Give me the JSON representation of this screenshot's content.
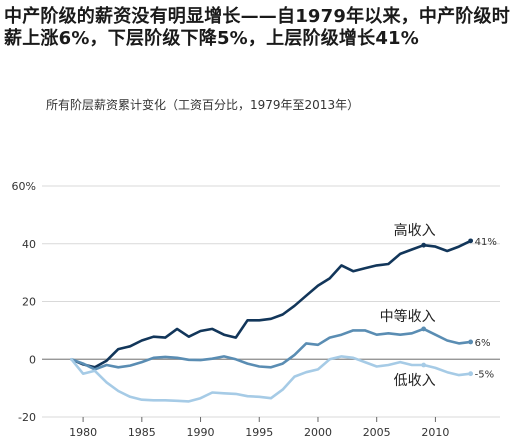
{
  "headline": "中产阶级的薪资没有明显增长——自1979年以来，中产阶级时薪上涨6%，下层阶级下降5%，上层阶级增长41%",
  "subtitle": "所有阶层薪资累计变化（工资百分比，1979年至2013年）",
  "chart_data": {
    "type": "line",
    "title": "中产阶级的薪资没有明显增长——自1979年以来，中产阶级时薪上涨6%，下层阶级下降5%，上层阶级增长41%",
    "subtitle": "所有阶层薪资累计变化（工资百分比，1979年至2013年）",
    "x": [
      1979,
      1980,
      1981,
      1982,
      1983,
      1984,
      1985,
      1986,
      1987,
      1988,
      1989,
      1990,
      1991,
      1992,
      1993,
      1994,
      1995,
      1996,
      1997,
      1998,
      1999,
      2000,
      2001,
      2002,
      2003,
      2004,
      2005,
      2006,
      2007,
      2008,
      2009,
      2010,
      2011,
      2012,
      2013
    ],
    "xticks": [
      1980,
      1985,
      1990,
      1995,
      2000,
      2005,
      2010
    ],
    "yticks": [
      -20,
      0,
      20,
      40,
      60
    ],
    "ytick_labels": [
      "-20",
      "0",
      "20",
      "40",
      "60%"
    ],
    "xlim": [
      1976.5,
      2015.5
    ],
    "ylim": [
      -20,
      60
    ],
    "grid": "horizontal",
    "series": [
      {
        "name": "高收入",
        "color": "#12365a",
        "end_label": "41%",
        "values": [
          0,
          -1.8,
          -2.8,
          -0.5,
          3.5,
          4.5,
          6.5,
          7.8,
          7.5,
          10.5,
          7.8,
          9.8,
          10.5,
          8.5,
          7.5,
          13.5,
          13.5,
          14,
          15.5,
          18.5,
          22,
          25.5,
          28,
          32.5,
          30.5,
          31.5,
          32.5,
          33,
          36.5,
          38,
          39.5,
          39,
          37.5,
          39,
          41
        ]
      },
      {
        "name": "中等收入",
        "color": "#5a8db3",
        "end_label": "6%",
        "values": [
          0,
          -1.5,
          -3.5,
          -2,
          -2.8,
          -2.2,
          -1,
          0.5,
          0.8,
          0.5,
          -0.2,
          -0.3,
          0.2,
          1,
          0,
          -1.5,
          -2.5,
          -2.8,
          -1.5,
          1.5,
          5.5,
          5,
          7.5,
          8.5,
          10,
          10,
          8.5,
          9,
          8.5,
          9,
          10.5,
          8.5,
          6.5,
          5.5,
          6
        ]
      },
      {
        "name": "低收入",
        "color": "#a6cbe6",
        "end_label": "-5%",
        "values": [
          0,
          -5,
          -4,
          -8,
          -11,
          -13,
          -14,
          -14.2,
          -14.2,
          -14.4,
          -14.6,
          -13.5,
          -11.5,
          -11.8,
          -12,
          -12.8,
          -13,
          -13.5,
          -10.5,
          -6,
          -4.5,
          -3.5,
          0,
          1,
          0.5,
          -1,
          -2.5,
          -2,
          -1,
          -2,
          -2,
          -3,
          -4.5,
          -5.5,
          -5
        ]
      }
    ]
  }
}
